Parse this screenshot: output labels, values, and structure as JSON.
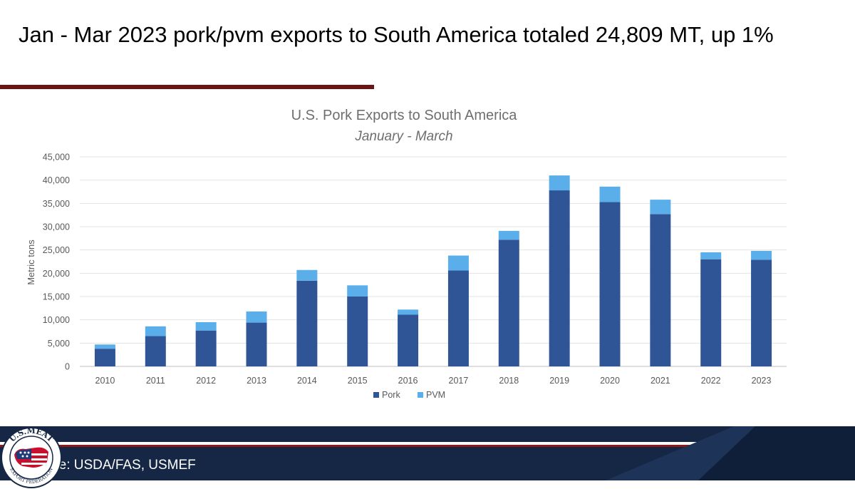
{
  "slide": {
    "title": "Jan - Mar 2023 pork/pvm exports to South America totaled 24,809 MT, up 1%",
    "source": "Source: USDA/FAS, USMEF",
    "logo_text_top": "U.S.MEAT",
    "logo_text_bottom": "EXPORT FEDERATION"
  },
  "colors": {
    "pork": "#2f5597",
    "pvm": "#5aaee9",
    "title_rule": "#6b1414",
    "footer_navy": "#152744",
    "footer_red": "#8b1a1a"
  },
  "chart_data": {
    "type": "bar",
    "stacked": true,
    "title": "U.S. Pork Exports to South America",
    "subtitle": "January - March",
    "xlabel": "",
    "ylabel": "Metric tons",
    "ylim": [
      0,
      45000
    ],
    "yticks": [
      0,
      5000,
      10000,
      15000,
      20000,
      25000,
      30000,
      35000,
      40000,
      45000
    ],
    "ytick_labels": [
      "0",
      "5,000",
      "10,000",
      "15,000",
      "20,000",
      "25,000",
      "30,000",
      "35,000",
      "40,000",
      "45,000"
    ],
    "grid": true,
    "legend_position": "bottom",
    "categories": [
      "2010",
      "2011",
      "2012",
      "2013",
      "2014",
      "2015",
      "2016",
      "2017",
      "2018",
      "2019",
      "2020",
      "2021",
      "2022",
      "2023"
    ],
    "series": [
      {
        "name": "Pork",
        "values": [
          3800,
          6500,
          7700,
          9400,
          18400,
          15000,
          11100,
          20600,
          27200,
          37800,
          35300,
          32700,
          23000,
          22900
        ]
      },
      {
        "name": "PVM",
        "values": [
          900,
          2100,
          1800,
          2400,
          2300,
          2400,
          1100,
          3200,
          1900,
          3200,
          3300,
          3100,
          1500,
          1909
        ]
      }
    ]
  }
}
